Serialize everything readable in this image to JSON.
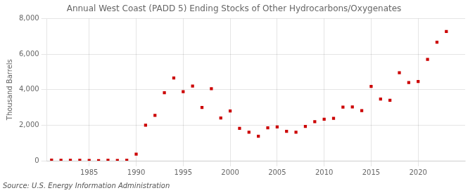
{
  "chart_data": {
    "type": "scatter",
    "title": "Annual West Coast (PADD 5) Ending Stocks of Other Hydrocarbons/Oxygenates",
    "ylabel": "Thousand Barrels",
    "annotation": "Source: U.S. Energy Information Administration",
    "color": "#cc0000",
    "marker": "square",
    "grid": true,
    "xlim": [
      1980.5,
      2025
    ],
    "xticks": [
      1985,
      1990,
      1995,
      2000,
      2005,
      2010,
      2015,
      2020
    ],
    "ylim": [
      0,
      8000
    ],
    "yticks": [
      0,
      {
        "value": 2000,
        "label": "2,000"
      },
      {
        "value": 4000,
        "label": "4,000"
      },
      {
        "value": 6000,
        "label": "6,000"
      },
      {
        "value": 8000,
        "label": "8,000"
      }
    ],
    "x": [
      1981,
      1982,
      1983,
      1984,
      1985,
      1986,
      1987,
      1988,
      1989,
      1990,
      1991,
      1992,
      1993,
      1994,
      1995,
      1996,
      1997,
      1998,
      1999,
      2000,
      2001,
      2002,
      2003,
      2004,
      2005,
      2006,
      2007,
      2008,
      2009,
      2010,
      2011,
      2012,
      2013,
      2014,
      2015,
      2016,
      2017,
      2018,
      2019,
      2020,
      2021,
      2022,
      2023
    ],
    "values": [
      30,
      20,
      25,
      20,
      15,
      10,
      20,
      15,
      20,
      370,
      2000,
      2550,
      3830,
      4650,
      3880,
      4200,
      3000,
      4050,
      2400,
      2800,
      1820,
      1600,
      1380,
      1850,
      1900,
      1650,
      1600,
      1930,
      2200,
      2330,
      2380,
      3020,
      3030,
      2820,
      4180,
      3470,
      3400,
      4950,
      4400,
      4460,
      5700,
      6670,
      7270
    ]
  }
}
